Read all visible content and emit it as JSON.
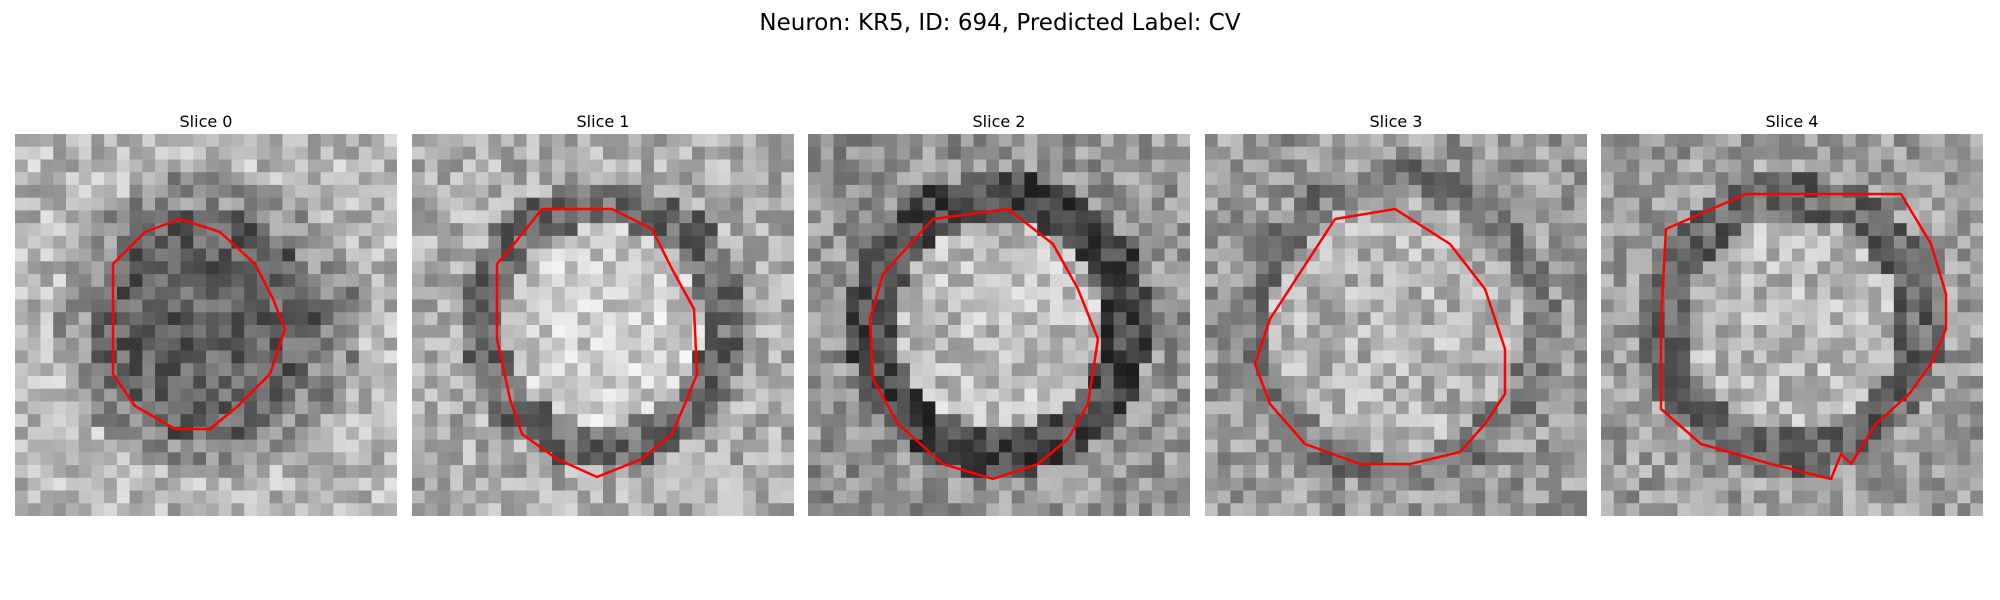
{
  "title": "Neuron: KR5, ID: 694, Predicted Label: CV",
  "panels": [
    {
      "label": "Slice 0",
      "contour_color": "#ff0000",
      "appearance": "dark-core",
      "seed": 11
    },
    {
      "label": "Slice 1",
      "contour_color": "#ff0000",
      "appearance": "bright-core",
      "seed": 23
    },
    {
      "label": "Slice 2",
      "contour_color": "#ff0000",
      "appearance": "ring",
      "seed": 37
    },
    {
      "label": "Slice 3",
      "contour_color": "#ff0000",
      "appearance": "soft",
      "seed": 41
    },
    {
      "label": "Slice 4",
      "contour_color": "#ff0000",
      "appearance": "soft-ring",
      "seed": 53
    }
  ]
}
